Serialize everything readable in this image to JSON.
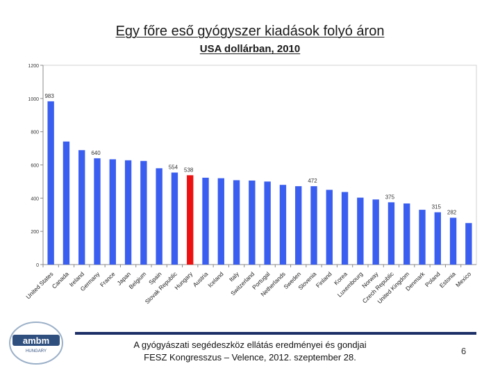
{
  "slide": {
    "title": "Egy főre eső gyógyszer kiadások folyó áron",
    "subtitle": "USA dollárban, 2010",
    "footer_line1": "A gyógyászati segédeszköz ellátás eredményei és gondjai",
    "footer_line2": "FESZ Kongresszus – Velence, 2012. szeptember 28.",
    "page_number": "6",
    "logo_text": "ambm",
    "logo_subtext": "HUNGARY"
  },
  "colors": {
    "bar": "#3a5ef0",
    "highlight": "#ee1111",
    "axis": "#888888",
    "footer_rule": "#1c2f66"
  },
  "chart_data": {
    "type": "bar",
    "title": "",
    "xlabel": "",
    "ylabel": "",
    "ylim": [
      0,
      1200
    ],
    "yticks": [
      0,
      200,
      400,
      600,
      800,
      1000,
      1200
    ],
    "categories": [
      "United States",
      "Canada",
      "Ireland",
      "Germany",
      "France",
      "Japan",
      "Belgium",
      "Spain",
      "Slovak Republic",
      "Hungary",
      "Austria",
      "Iceland",
      "Italy",
      "Switzerland",
      "Portugal",
      "Netherlands",
      "Sweden",
      "Slovenia",
      "Finland",
      "Korea",
      "Luxembourg",
      "Norway",
      "Czech Republic",
      "United Kingdom",
      "Denmark",
      "Poland",
      "Estonia",
      "Mexico"
    ],
    "values": [
      983,
      741,
      689,
      640,
      634,
      628,
      624,
      580,
      554,
      538,
      523,
      520,
      508,
      506,
      500,
      480,
      472,
      472,
      450,
      437,
      403,
      392,
      375,
      368,
      330,
      315,
      282,
      250
    ],
    "labels": {
      "0": "983",
      "3": "640",
      "8": "554",
      "9": "538",
      "17": "472",
      "22": "375",
      "25": "315",
      "26": "282"
    },
    "highlight_index": 9
  }
}
